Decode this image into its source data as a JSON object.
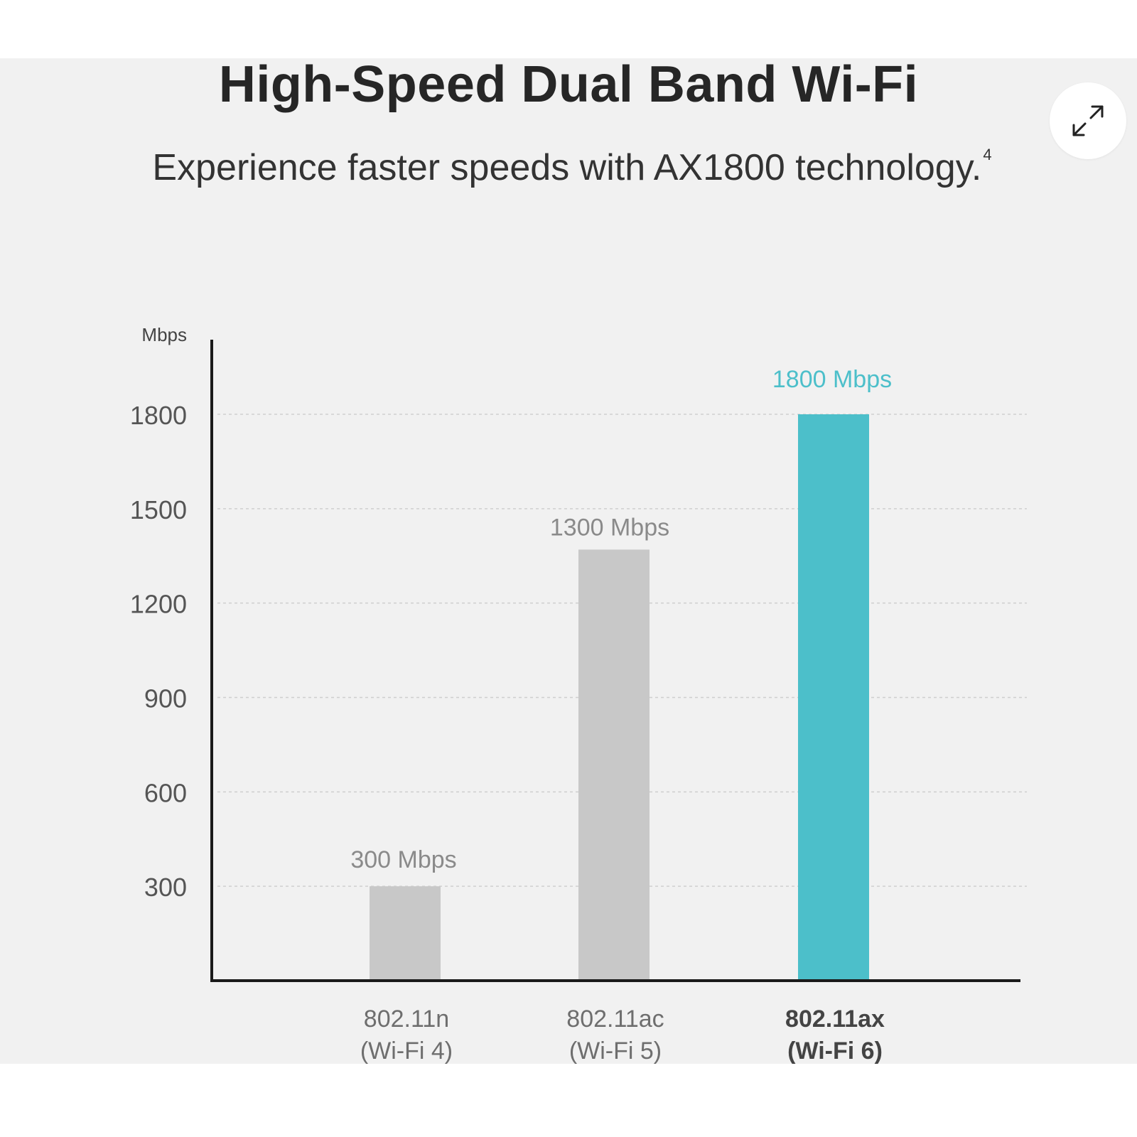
{
  "header": {
    "title": "High-Speed Dual Band Wi-Fi",
    "subtitle": "Experience faster speeds with AX1800 technology.",
    "footnote_marker": "4"
  },
  "controls": {
    "expand_icon": "expand-arrows-icon"
  },
  "colors": {
    "background_panel": "#f1f1f1",
    "bar_gray": "#c8c8c8",
    "bar_accent": "#4cbfca",
    "label_gray": "#8a8a8a",
    "label_accent": "#4cbfca",
    "axis": "#1a1a1a",
    "gridline": "#cfcfcf"
  },
  "chart_data": {
    "type": "bar",
    "title": "",
    "ylabel": "Mbps",
    "xlabel": "",
    "ylim": [
      0,
      1950
    ],
    "yticks": [
      300,
      600,
      900,
      1200,
      1500,
      1800
    ],
    "grid": true,
    "categories": [
      [
        "802.11n",
        "(Wi-Fi 4)"
      ],
      [
        "802.11ac",
        "(Wi-Fi 5)"
      ],
      [
        "802.11ax",
        "(Wi-Fi 6)"
      ]
    ],
    "values": [
      300,
      1300,
      1800
    ],
    "bar_display_values": [
      300,
      1370,
      1800
    ],
    "data_labels": [
      "300 Mbps",
      "1300 Mbps",
      "1800 Mbps"
    ],
    "highlight_index": 2
  }
}
